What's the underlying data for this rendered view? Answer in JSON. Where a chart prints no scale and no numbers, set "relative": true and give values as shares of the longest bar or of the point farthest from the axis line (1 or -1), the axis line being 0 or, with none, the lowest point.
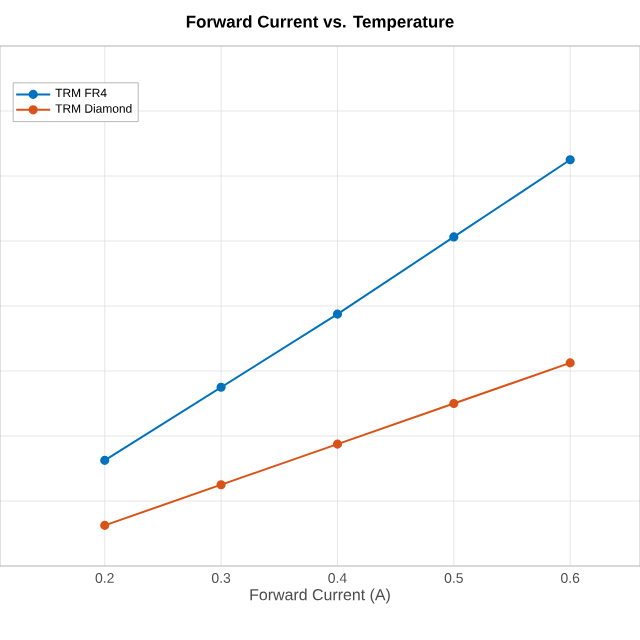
{
  "chart_data": {
    "type": "line",
    "title": "Forward Current vs. Temperature",
    "xlabel": "Forward Current (A)",
    "relative": true,
    "x": [
      0.2,
      0.3,
      0.4,
      0.5,
      0.6
    ],
    "xlim": [
      0.11,
      0.66
    ],
    "xticks": [
      0.2,
      0.3,
      0.4,
      0.5,
      0.6
    ],
    "series": [
      {
        "name": "TRM FR4",
        "color": "#0072bd",
        "values": [
          0.26,
          0.44,
          0.62,
          0.81,
          1.0
        ]
      },
      {
        "name": "TRM Diamond",
        "color": "#d95319",
        "values": [
          0.1,
          0.2,
          0.3,
          0.4,
          0.5
        ]
      }
    ],
    "grid": true,
    "legend": "top left",
    "marker": "circle",
    "line_style": "solid"
  }
}
